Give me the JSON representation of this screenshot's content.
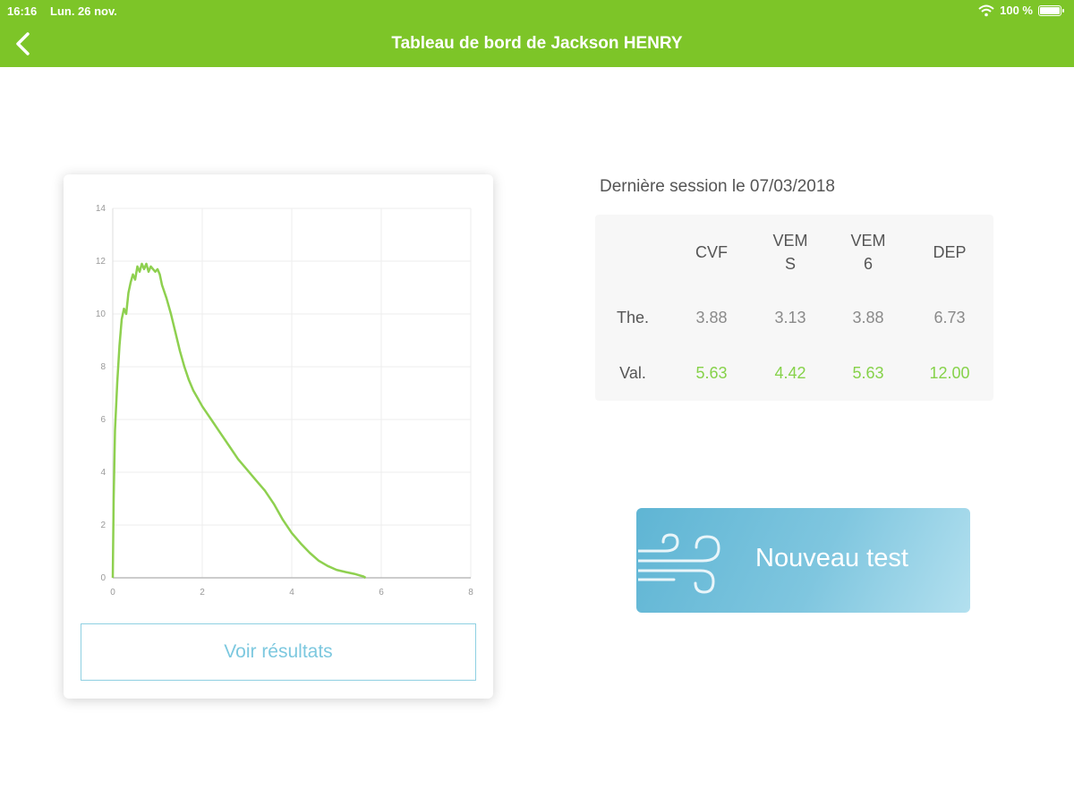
{
  "status_bar": {
    "time": "16:16",
    "date": "Lun. 26 nov.",
    "battery": "100 %"
  },
  "nav": {
    "title": "Tableau de bord de Jackson HENRY"
  },
  "session": {
    "label": "Dernière session le 07/03/2018"
  },
  "table": {
    "headers": [
      {
        "line1": "CVF",
        "line2": ""
      },
      {
        "line1": "VEM",
        "line2": "S"
      },
      {
        "line1": "VEM",
        "line2": "6"
      },
      {
        "line1": "DEP",
        "line2": ""
      }
    ],
    "rows": [
      {
        "label": "The.",
        "values": [
          "3.88",
          "3.13",
          "3.88",
          "6.73"
        ]
      },
      {
        "label": "Val.",
        "values": [
          "5.63",
          "4.42",
          "5.63",
          "12.00"
        ]
      }
    ]
  },
  "buttons": {
    "results": "Voir résultats",
    "new_test": "Nouveau test"
  },
  "colors": {
    "brand_green": "#7dc528",
    "curve_green": "#8ed04f",
    "accent_blue": "#7cc8df"
  },
  "icons": {
    "back": "chevron-left-icon",
    "wifi": "wifi-icon",
    "battery": "battery-charging-icon",
    "wind": "wind-icon"
  },
  "chart_data": {
    "type": "line",
    "title": "",
    "xlabel": "",
    "ylabel": "",
    "xlim": [
      0,
      8
    ],
    "ylim": [
      0,
      14
    ],
    "x_ticks": [
      "0",
      "2",
      "4",
      "6",
      "8"
    ],
    "y_ticks": [
      "0",
      "2",
      "4",
      "6",
      "8",
      "10",
      "12",
      "14"
    ],
    "grid": true,
    "series": [
      {
        "x": [
          0,
          0.02,
          0.05,
          0.1,
          0.15,
          0.2,
          0.25,
          0.3,
          0.35,
          0.4,
          0.45,
          0.5,
          0.55,
          0.6,
          0.65,
          0.7,
          0.75,
          0.8,
          0.85,
          0.9,
          0.95,
          1.0,
          1.05,
          1.1,
          1.2,
          1.3,
          1.4,
          1.5,
          1.6,
          1.7,
          1.8,
          1.9,
          2.0,
          2.2,
          2.4,
          2.6,
          2.8,
          3.0,
          3.2,
          3.4,
          3.6,
          3.8,
          4.0,
          4.2,
          4.4,
          4.6,
          4.8,
          5.0,
          5.2,
          5.4,
          5.5,
          5.6,
          5.65
        ],
        "y": [
          0,
          3.0,
          5.6,
          7.4,
          8.8,
          9.8,
          10.2,
          10.0,
          10.8,
          11.2,
          11.5,
          11.3,
          11.8,
          11.6,
          11.9,
          11.7,
          11.9,
          11.6,
          11.8,
          11.7,
          11.6,
          11.7,
          11.5,
          11.1,
          10.6,
          10.0,
          9.3,
          8.6,
          8.0,
          7.5,
          7.1,
          6.8,
          6.5,
          6.0,
          5.5,
          5.0,
          4.5,
          4.1,
          3.7,
          3.3,
          2.8,
          2.2,
          1.7,
          1.3,
          0.95,
          0.65,
          0.45,
          0.3,
          0.22,
          0.15,
          0.1,
          0.05,
          0
        ]
      }
    ]
  }
}
